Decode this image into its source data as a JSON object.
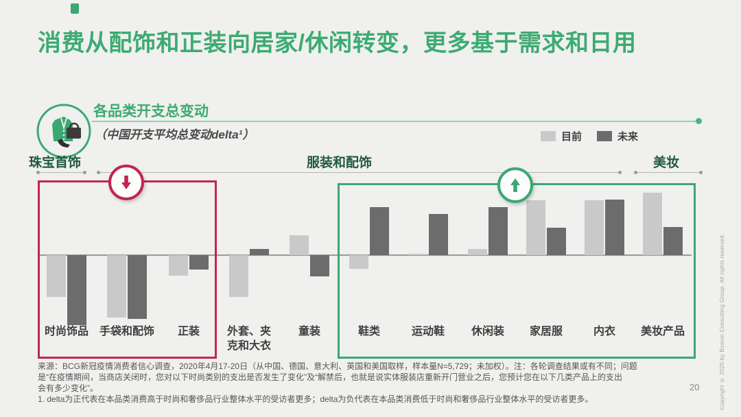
{
  "slide": {
    "title": "消费从配饰和正装向居家/休闲转变，更多基于需求和日用",
    "page_number": "20",
    "copyright_vertical": "Copyright © 2020 by Boston Consulting Group. All rights reserved."
  },
  "header": {
    "heading": "各品类开支总变动",
    "subtitle": "（中国开支平均总变动delta¹）"
  },
  "legend": {
    "items": [
      {
        "label": "目前",
        "color": "#c9c9c9"
      },
      {
        "label": "未来",
        "color": "#6c6c6c"
      }
    ]
  },
  "colors": {
    "accent_green": "#3cab72",
    "dark_green": "#20593f",
    "decrease_red": "#c12553",
    "increase_green": "#3aa873",
    "bar_current": "#c9c9c9",
    "bar_future": "#6c6c6c",
    "background": "#f0f0ee"
  },
  "chart_data": {
    "type": "bar",
    "title": "各品类开支总变动",
    "subtitle": "（中国开支平均总变动delta¹）",
    "categories": [
      "时尚饰品",
      "手袋和配饰",
      "正装",
      "外套、夹克和大衣",
      "童装",
      "鞋类",
      "运动鞋",
      "休闲装",
      "家居服",
      "内衣",
      "美妆产品"
    ],
    "series": [
      {
        "name": "目前",
        "color": "#c9c9c9",
        "values": [
          -61,
          -91,
          -30,
          -61,
          29,
          -20,
          2,
          9,
          80,
          80,
          91
        ]
      },
      {
        "name": "未来",
        "color": "#6c6c6c",
        "values": [
          -102,
          -93,
          -21,
          9,
          -31,
          70,
          60,
          70,
          40,
          81,
          41
        ]
      }
    ],
    "value_axis": {
      "shown": false,
      "note": "no numeric axis in figure; values estimated in relative delta units from bar heights",
      "range": [
        -110,
        100
      ]
    },
    "legend_position": "top-right",
    "grid": false,
    "category_groups": [
      {
        "label": "珠宝首饰",
        "categories": [
          "时尚饰品"
        ]
      },
      {
        "label": "服装和配饰",
        "categories": [
          "手袋和配饰",
          "正装",
          "外套、夹克和大衣",
          "童装",
          "鞋类",
          "运动鞋",
          "休闲装",
          "家居服",
          "内衣"
        ]
      },
      {
        "label": "美妆",
        "categories": [
          "美妆产品"
        ]
      }
    ],
    "annotations": [
      {
        "type": "decrease-box",
        "arrow": "down",
        "color": "#c12553",
        "categories": [
          "时尚饰品",
          "手袋和配饰",
          "正装"
        ]
      },
      {
        "type": "increase-box",
        "arrow": "up",
        "color": "#3aa873",
        "categories": [
          "鞋类",
          "运动鞋",
          "休闲装",
          "家居服",
          "内衣",
          "美妆产品"
        ]
      }
    ]
  },
  "category_labels_display": [
    "时尚饰品",
    "手袋和配饰",
    "正装",
    "外套、夹\n克和大衣",
    "童装",
    "鞋类",
    "运动鞋",
    "休闲装",
    "家居服",
    "内衣",
    "美妆产品"
  ],
  "footnotes": {
    "source_note": "来源：BCG新冠疫情消费者信心调查，2020年4月17-20日（从中国、德国、意大利、英国和美国取样，样本量N=5,729；未加权）。注：各轮调查结果或有不同；问题\n是“在疫情期间，当商店关闭时，您对以下时尚类别的支出是否发生了变化”及“解禁后，也就是说实体服装店重新开门营业之后，您预计您在以下几类产品上的支出\n会有多少变化”。",
    "footnote_1": "1. delta为正代表在本品类消费高于时尚和奢侈品行业整体水平的受访者更多；delta为负代表在本品类消费低于时尚和奢侈品行业整体水平的受访者更多。"
  }
}
